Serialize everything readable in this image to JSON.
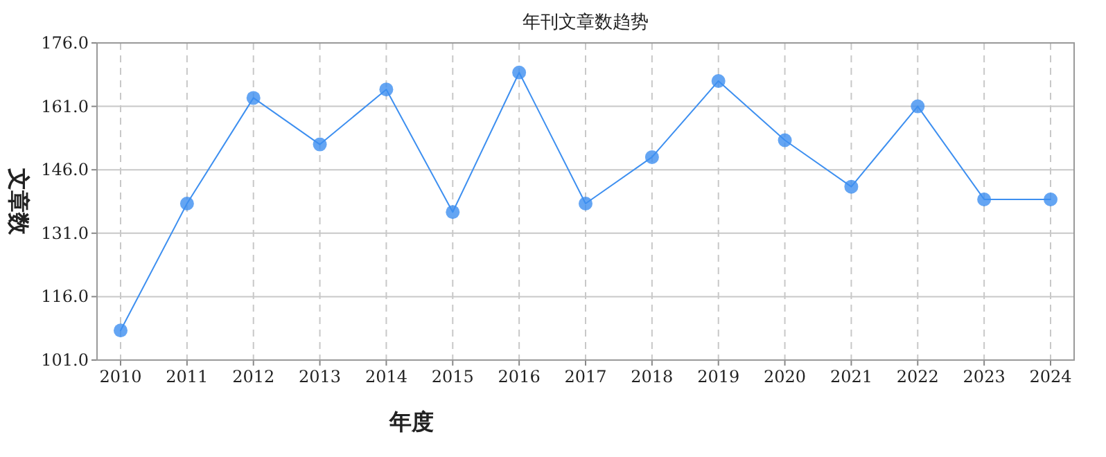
{
  "chart_data": {
    "type": "line",
    "title": "年刊文章数趋势",
    "xlabel": "年度",
    "ylabel": "文章数",
    "categories": [
      "2010",
      "2011",
      "2012",
      "2013",
      "2014",
      "2015",
      "2016",
      "2017",
      "2018",
      "2019",
      "2020",
      "2021",
      "2022",
      "2023",
      "2024"
    ],
    "series": [
      {
        "color": "#3d8ff0",
        "values": [
          108,
          138,
          163,
          152,
          165,
          136,
          169,
          138,
          149,
          167,
          153,
          142,
          161,
          139,
          139
        ]
      }
    ],
    "ylim": [
      101,
      176
    ],
    "yticks": [
      {
        "value": 101,
        "label": "101.0"
      },
      {
        "value": 116,
        "label": "116.0"
      },
      {
        "value": 131,
        "label": "131.0"
      },
      {
        "value": 146,
        "label": "146.0"
      },
      {
        "value": 161,
        "label": "161.0"
      },
      {
        "value": 176,
        "label": "176.0"
      }
    ],
    "grid": true,
    "marker": "circle",
    "line_style": "solid"
  }
}
